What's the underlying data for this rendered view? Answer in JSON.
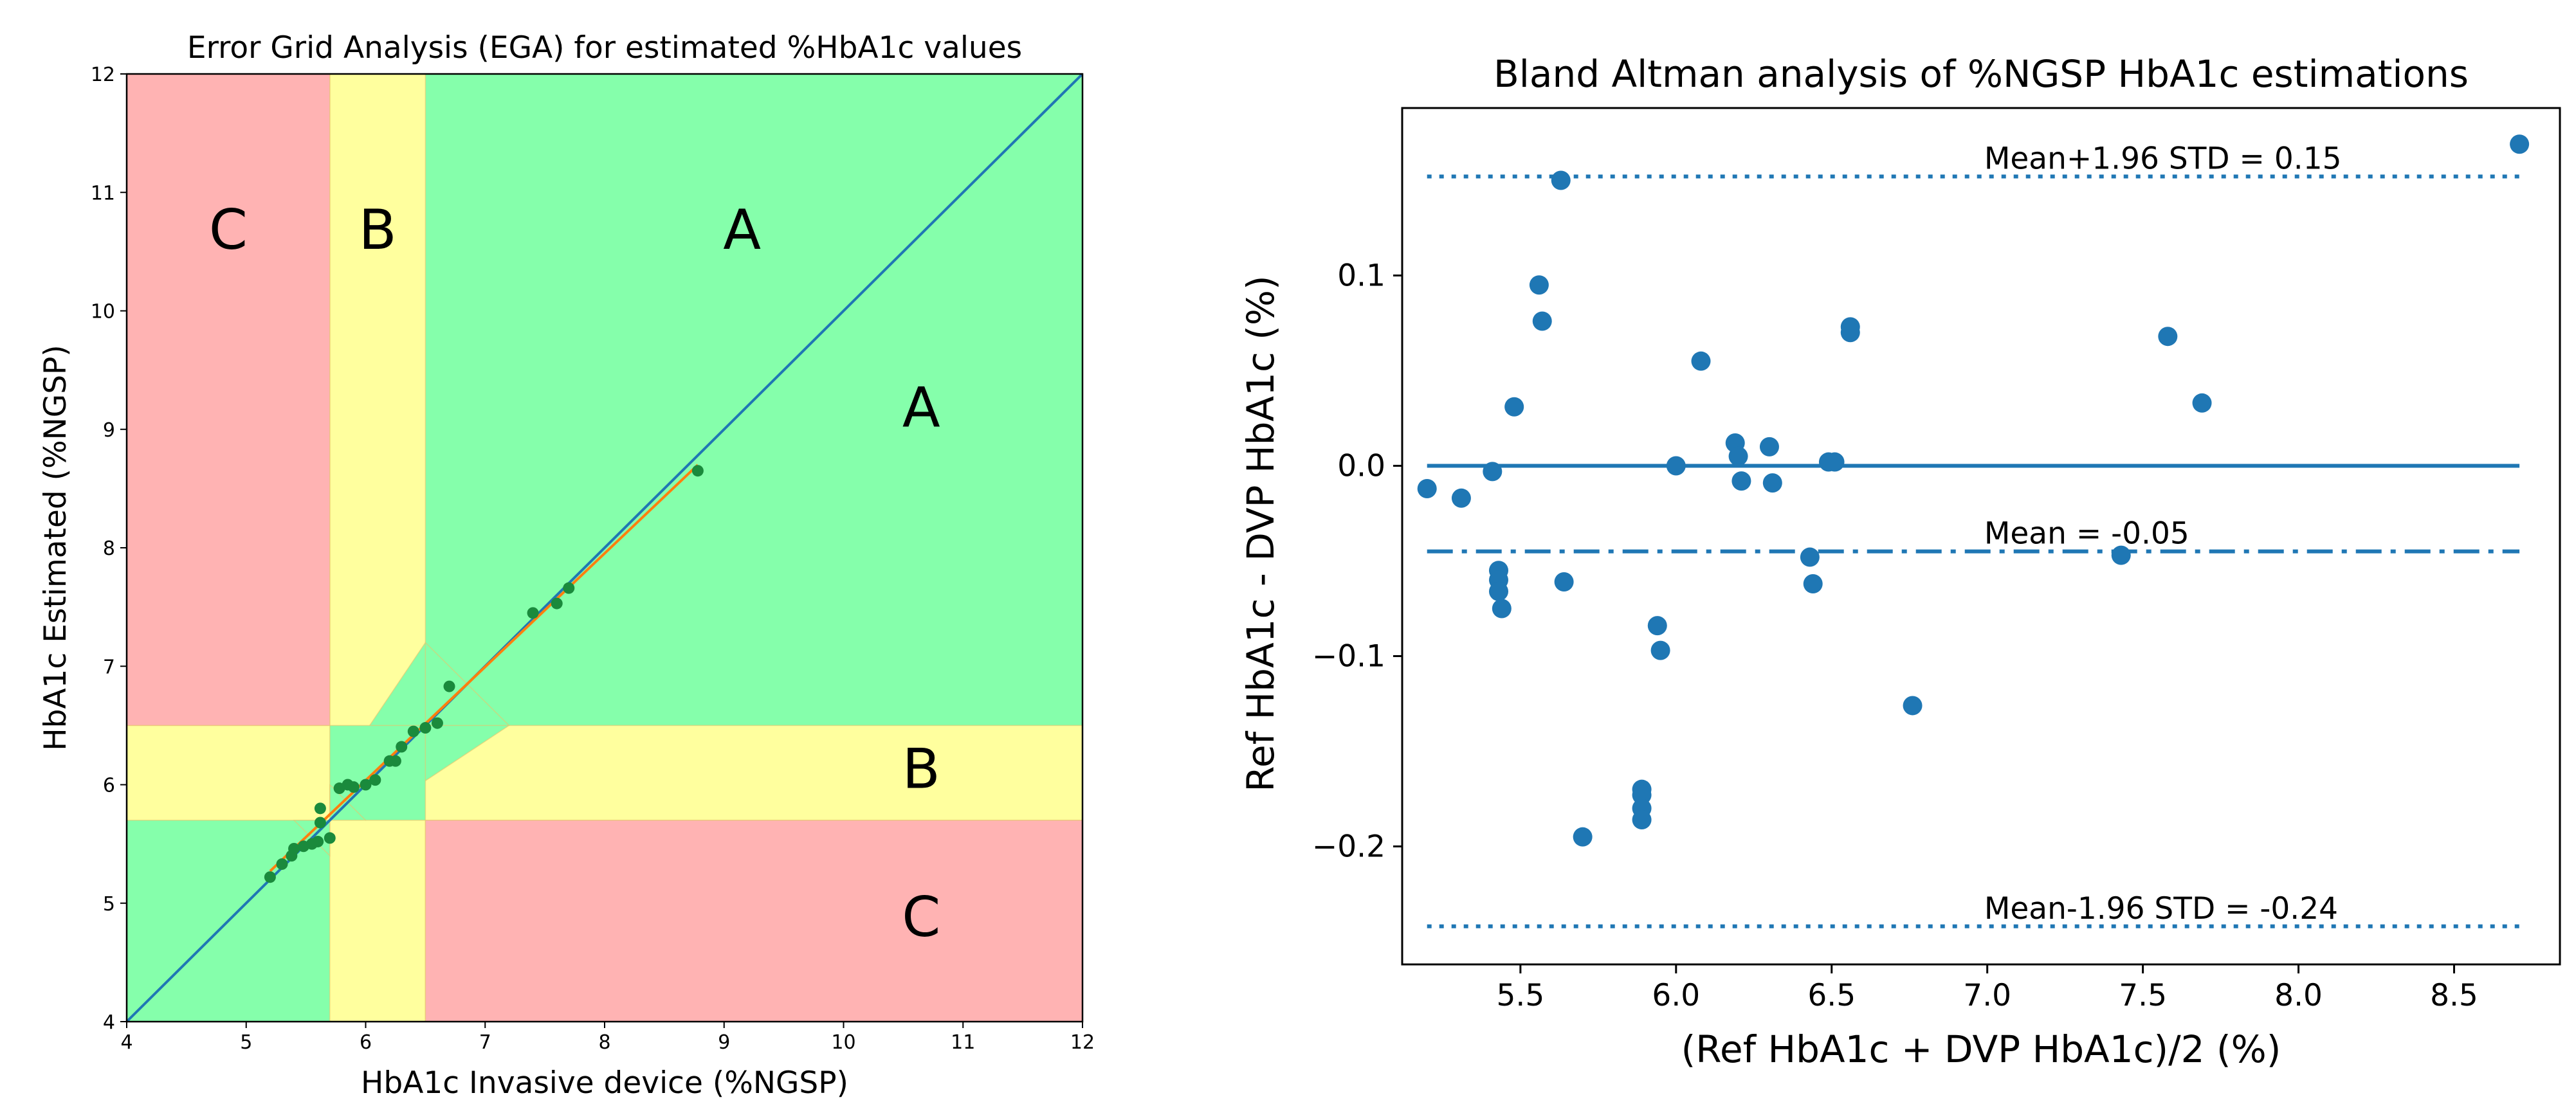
{
  "chart_data": [
    {
      "type": "scatter",
      "title": "Error Grid Analysis (EGA) for estimated %HbA1c values",
      "xlabel": "HbA1c Invasive device (%NGSP)",
      "ylabel": "HbA1c Estimated (%NGSP)",
      "xlim": [
        4,
        12
      ],
      "ylim": [
        4,
        12
      ],
      "xticks": [
        "4",
        "5",
        "6",
        "7",
        "8",
        "9",
        "10",
        "11",
        "12"
      ],
      "yticks": [
        "4",
        "5",
        "6",
        "7",
        "8",
        "9",
        "10",
        "11",
        "12"
      ],
      "grid": false,
      "zone_colors": {
        "A": "#85ffab",
        "B": "#ffff9e",
        "C": "#ffb3b3"
      },
      "point_color": "#1a8a3c",
      "identity_color": "#1f77b4",
      "fit_color": "#ff7f0e",
      "zone_labels": [
        {
          "label": "C",
          "x": 4.85,
          "y": 10.65
        },
        {
          "label": "B",
          "x": 6.1,
          "y": 10.65
        },
        {
          "label": "A",
          "x": 9.15,
          "y": 10.65
        },
        {
          "label": "A",
          "x": 10.65,
          "y": 9.15
        },
        {
          "label": "B",
          "x": 10.65,
          "y": 6.1
        },
        {
          "label": "C",
          "x": 10.65,
          "y": 4.85
        }
      ],
      "regions": [
        {
          "zone": "A",
          "points": [
            [
              4,
              4
            ],
            [
              12,
              4
            ],
            [
              12,
              12
            ],
            [
              4,
              12
            ]
          ]
        },
        {
          "zone": "B",
          "points": [
            [
              5.7,
              12
            ],
            [
              6.5,
              12
            ],
            [
              6.5,
              7.2
            ],
            [
              5.7,
              6.0
            ],
            [
              5.7,
              5.7
            ],
            [
              4,
              5.7
            ],
            [
              4,
              6.5
            ],
            [
              5.7,
              6.5
            ]
          ]
        },
        {
          "zone": "B",
          "points": [
            [
              12,
              5.7
            ],
            [
              12,
              6.5
            ],
            [
              7.2,
              6.5
            ],
            [
              6.0,
              5.7
            ],
            [
              5.7,
              5.7
            ],
            [
              5.7,
              4
            ],
            [
              6.5,
              4
            ],
            [
              6.5,
              5.7
            ]
          ]
        },
        {
          "zone": "A",
          "points": [
            [
              5.4,
              5.7
            ],
            [
              5.7,
              5.7
            ],
            [
              5.7,
              6.0
            ],
            [
              6.0,
              5.7
            ],
            [
              6.5,
              5.7
            ],
            [
              6.5,
              7.2
            ],
            [
              7.2,
              6.5
            ],
            [
              5.7,
              6.5
            ],
            [
              5.7,
              5.4
            ]
          ]
        },
        {
          "zone": "C",
          "points": [
            [
              4,
              6.5
            ],
            [
              5.7,
              6.5
            ],
            [
              5.7,
              12
            ],
            [
              4,
              12
            ]
          ]
        },
        {
          "zone": "C",
          "points": [
            [
              6.5,
              4
            ],
            [
              12,
              4
            ],
            [
              12,
              5.7
            ],
            [
              6.5,
              5.7
            ]
          ]
        }
      ],
      "points": [
        {
          "x": 5.2,
          "y": 5.22
        },
        {
          "x": 5.3,
          "y": 5.33
        },
        {
          "x": 5.38,
          "y": 5.4
        },
        {
          "x": 5.4,
          "y": 5.46
        },
        {
          "x": 5.48,
          "y": 5.48
        },
        {
          "x": 5.55,
          "y": 5.5
        },
        {
          "x": 5.6,
          "y": 5.52
        },
        {
          "x": 5.62,
          "y": 5.8
        },
        {
          "x": 5.62,
          "y": 5.68
        },
        {
          "x": 5.7,
          "y": 5.55
        },
        {
          "x": 5.78,
          "y": 5.97
        },
        {
          "x": 5.85,
          "y": 6.0
        },
        {
          "x": 5.9,
          "y": 5.98
        },
        {
          "x": 6.0,
          "y": 6.0
        },
        {
          "x": 6.08,
          "y": 6.04
        },
        {
          "x": 6.2,
          "y": 6.2
        },
        {
          "x": 6.25,
          "y": 6.2
        },
        {
          "x": 6.3,
          "y": 6.32
        },
        {
          "x": 6.4,
          "y": 6.45
        },
        {
          "x": 6.5,
          "y": 6.48
        },
        {
          "x": 6.6,
          "y": 6.52
        },
        {
          "x": 6.7,
          "y": 6.83
        },
        {
          "x": 7.4,
          "y": 7.45
        },
        {
          "x": 7.6,
          "y": 7.53
        },
        {
          "x": 7.7,
          "y": 7.66
        },
        {
          "x": 8.78,
          "y": 8.65
        }
      ],
      "identity_line": [
        [
          4,
          4
        ],
        [
          12,
          12
        ]
      ],
      "fit_line": [
        [
          5.2,
          5.27
        ],
        [
          8.78,
          8.7
        ]
      ]
    },
    {
      "type": "scatter",
      "title": "Bland Altman analysis of %NGSP HbA1c estimations",
      "xlabel": "(Ref HbA1c + DVP HbA1c)/2 (%)",
      "ylabel": "Ref HbA1c - DVP HbA1c (%)",
      "xlim": [
        5.12,
        8.84
      ],
      "ylim": [
        -0.262,
        0.188
      ],
      "xticks": [
        "5.5",
        "6.0",
        "6.5",
        "7.0",
        "7.5",
        "8.0",
        "8.5"
      ],
      "yticks": [
        "−0.2",
        "−0.1",
        "0.0",
        "0.1"
      ],
      "grid": false,
      "point_color": "#1f77b4",
      "points": [
        {
          "x": 5.2,
          "y": -0.012
        },
        {
          "x": 5.31,
          "y": -0.017
        },
        {
          "x": 5.41,
          "y": -0.003
        },
        {
          "x": 5.43,
          "y": -0.055
        },
        {
          "x": 5.43,
          "y": -0.06
        },
        {
          "x": 5.43,
          "y": -0.066
        },
        {
          "x": 5.44,
          "y": -0.075
        },
        {
          "x": 5.48,
          "y": 0.031
        },
        {
          "x": 5.56,
          "y": 0.095
        },
        {
          "x": 5.57,
          "y": 0.076
        },
        {
          "x": 5.63,
          "y": 0.15
        },
        {
          "x": 5.64,
          "y": -0.061
        },
        {
          "x": 5.7,
          "y": -0.195
        },
        {
          "x": 5.89,
          "y": -0.17
        },
        {
          "x": 5.89,
          "y": -0.173
        },
        {
          "x": 5.89,
          "y": -0.18
        },
        {
          "x": 5.89,
          "y": -0.186
        },
        {
          "x": 5.94,
          "y": -0.084
        },
        {
          "x": 5.95,
          "y": -0.097
        },
        {
          "x": 6.0,
          "y": 0.0
        },
        {
          "x": 6.08,
          "y": 0.055
        },
        {
          "x": 6.19,
          "y": 0.012
        },
        {
          "x": 6.2,
          "y": 0.005
        },
        {
          "x": 6.21,
          "y": -0.008
        },
        {
          "x": 6.3,
          "y": 0.01
        },
        {
          "x": 6.31,
          "y": -0.009
        },
        {
          "x": 6.43,
          "y": -0.048
        },
        {
          "x": 6.44,
          "y": -0.062
        },
        {
          "x": 6.49,
          "y": 0.002
        },
        {
          "x": 6.51,
          "y": 0.002
        },
        {
          "x": 6.56,
          "y": 0.073
        },
        {
          "x": 6.56,
          "y": 0.07
        },
        {
          "x": 6.76,
          "y": -0.126
        },
        {
          "x": 7.43,
          "y": -0.047
        },
        {
          "x": 7.58,
          "y": 0.068
        },
        {
          "x": 7.69,
          "y": 0.033
        },
        {
          "x": 8.71,
          "y": 0.169
        }
      ],
      "zero_line": {
        "y": 0.0,
        "x_from": 5.2,
        "x_to": 8.71
      },
      "mean_line": {
        "y": -0.045,
        "x_from": 5.2,
        "x_to": 8.71,
        "label": "Mean = -0.05"
      },
      "upper_loa": {
        "y": 0.152,
        "x_from": 5.2,
        "x_to": 8.71,
        "label": "Mean+1.96 STD = 0.15"
      },
      "lower_loa": {
        "y": -0.242,
        "x_from": 5.2,
        "x_to": 8.71,
        "label": "Mean-1.96 STD = -0.24"
      },
      "annotation_x": 6.99
    }
  ]
}
